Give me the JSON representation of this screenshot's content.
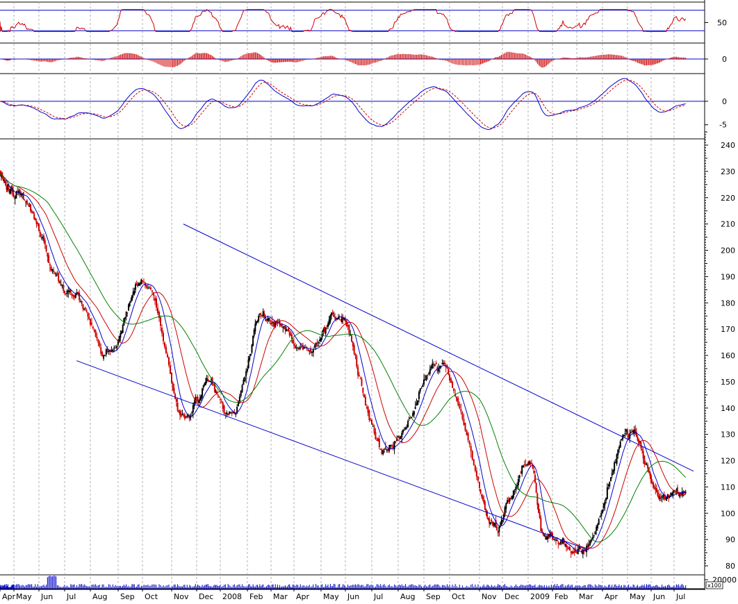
{
  "chart_data": [
    {
      "panel": "rsi",
      "type": "line",
      "ylim": [
        0,
        100
      ],
      "y_ticks": [
        "50"
      ],
      "reference_lines": [
        30,
        80
      ],
      "series": [
        {
          "color": "#cc0000"
        }
      ]
    },
    {
      "panel": "macd-histogram",
      "type": "bar",
      "y_ticks": [
        "0"
      ],
      "series": [
        {
          "color": "#cc0000"
        }
      ]
    },
    {
      "panel": "macd",
      "type": "line",
      "ylim": [
        -8,
        5
      ],
      "y_ticks": [
        "0",
        "-5"
      ],
      "series": [
        {
          "color": "#0000cc",
          "style": "solid"
        },
        {
          "color": "#cc0000",
          "style": "dashed"
        }
      ]
    },
    {
      "panel": "price",
      "type": "candlestick",
      "ylim": [
        75,
        245
      ],
      "y_ticks": [
        "240",
        "230",
        "220",
        "210",
        "200",
        "190",
        "180",
        "170",
        "160",
        "150",
        "140",
        "130",
        "120",
        "110",
        "100",
        "90",
        "80"
      ],
      "key_points": [
        {
          "x": "2007-05",
          "y": 222
        },
        {
          "x": "2007-07-15",
          "y": 182
        },
        {
          "x": "2007-08-20",
          "y": 162
        },
        {
          "x": "2007-10-05",
          "y": 188
        },
        {
          "x": "2007-11-15",
          "y": 137
        },
        {
          "x": "2007-12-15",
          "y": 150
        },
        {
          "x": "2008-01-15",
          "y": 138
        },
        {
          "x": "2008-02-20",
          "y": 175
        },
        {
          "x": "2008-04-15",
          "y": 162
        },
        {
          "x": "2008-05-25",
          "y": 175
        },
        {
          "x": "2008-07-15",
          "y": 125
        },
        {
          "x": "2008-09-20",
          "y": 156
        },
        {
          "x": "2008-11-20",
          "y": 97
        },
        {
          "x": "2009-01-05",
          "y": 118
        },
        {
          "x": "2009-01-20",
          "y": 90
        },
        {
          "x": "2009-03-05",
          "y": 86
        },
        {
          "x": "2009-05-05",
          "y": 130
        },
        {
          "x": "2009-06-15",
          "y": 105
        },
        {
          "x": "2009-07-10",
          "y": 108
        }
      ],
      "moving_averages": [
        {
          "color": "#0000cc"
        },
        {
          "color": "#cc0000"
        },
        {
          "color": "#008000"
        }
      ],
      "trend_channel": {
        "color": "#0000cc",
        "upper": [
          {
            "x": "2007-11-15",
            "y": 210
          },
          {
            "x": "2009-07-25",
            "y": 116
          }
        ],
        "lower": [
          {
            "x": "2007-07-15",
            "y": 158
          },
          {
            "x": "2009-03-15",
            "y": 86
          }
        ]
      }
    },
    {
      "panel": "volume",
      "type": "bar",
      "y_ticks": [
        "20000"
      ],
      "unit_label": "x100",
      "series": [
        {
          "color": "#0000cc"
        }
      ]
    }
  ],
  "x_axis": {
    "labels": [
      {
        "text": "Apr",
        "x": "2007-04"
      },
      {
        "text": "May",
        "x": "2007-05"
      },
      {
        "text": "Jun",
        "x": "2007-06"
      },
      {
        "text": "Jul",
        "x": "2007-07"
      },
      {
        "text": "Aug",
        "x": "2007-08"
      },
      {
        "text": "Sep",
        "x": "2007-09"
      },
      {
        "text": "Oct",
        "x": "2007-10"
      },
      {
        "text": "Nov",
        "x": "2007-11"
      },
      {
        "text": "Dec",
        "x": "2007-12"
      },
      {
        "text": "2008",
        "x": "2008-01"
      },
      {
        "text": "Feb",
        "x": "2008-02"
      },
      {
        "text": "Mar",
        "x": "2008-03"
      },
      {
        "text": "Apr",
        "x": "2008-04"
      },
      {
        "text": "May",
        "x": "2008-05"
      },
      {
        "text": "Jun",
        "x": "2008-06"
      },
      {
        "text": "Jul",
        "x": "2008-07"
      },
      {
        "text": "Aug",
        "x": "2008-08"
      },
      {
        "text": "Sep",
        "x": "2008-09"
      },
      {
        "text": "Oct",
        "x": "2008-10"
      },
      {
        "text": "Nov",
        "x": "2008-11"
      },
      {
        "text": "Dec",
        "x": "2008-12"
      },
      {
        "text": "2009",
        "x": "2009-01"
      },
      {
        "text": "Feb",
        "x": "2009-02"
      },
      {
        "text": "Mar",
        "x": "2009-03"
      },
      {
        "text": "Apr",
        "x": "2009-04"
      },
      {
        "text": "May",
        "x": "2009-05"
      },
      {
        "text": "Jun",
        "x": "2009-06"
      },
      {
        "text": "Jul",
        "x": "2009-07"
      }
    ]
  },
  "colors": {
    "grid": "#b0b0b0",
    "axis": "#000000",
    "up_candle": "#000000",
    "down_candle": "#cc0000"
  }
}
